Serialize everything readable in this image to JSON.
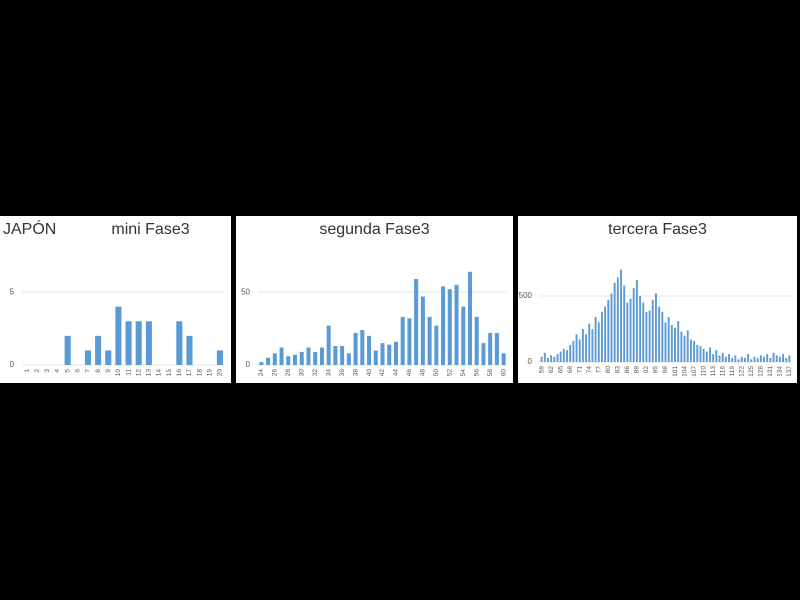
{
  "chart_data": [
    {
      "type": "bar",
      "label": "JAPÓN",
      "title": "mini Fase3",
      "color": "#5b9bd5",
      "grid": true,
      "categories": [
        "1",
        "2",
        "3",
        "4",
        "5",
        "6",
        "7",
        "8",
        "9",
        "10",
        "11",
        "12",
        "13",
        "14",
        "15",
        "16",
        "17",
        "18",
        "19",
        "20"
      ],
      "values": [
        0,
        0,
        0,
        0,
        2,
        0,
        1,
        2,
        1,
        4,
        3,
        3,
        3,
        0,
        0,
        3,
        2,
        0,
        0,
        1
      ],
      "ylim": [
        0,
        7
      ],
      "yticks": [
        0,
        5
      ]
    },
    {
      "type": "bar",
      "title": "segunda Fase3",
      "color": "#5b9bd5",
      "grid": true,
      "categories": [
        "24",
        null,
        "26",
        null,
        "28",
        null,
        "30",
        null,
        "32",
        null,
        "34",
        null,
        "36",
        null,
        "38",
        null,
        "40",
        null,
        "42",
        null,
        "44",
        null,
        "46",
        null,
        "48",
        null,
        "50",
        null,
        "52",
        null,
        "54",
        null,
        "56",
        null,
        "58",
        null,
        "60"
      ],
      "values": [
        2,
        5,
        8,
        12,
        6,
        7,
        9,
        12,
        9,
        12,
        27,
        13,
        13,
        8,
        22,
        24,
        20,
        10,
        15,
        14,
        16,
        33,
        32,
        59,
        47,
        33,
        27,
        54,
        52,
        55,
        40,
        64,
        33,
        15,
        22,
        22,
        8
      ],
      "ylim": [
        0,
        70
      ],
      "yticks": [
        0,
        50
      ]
    },
    {
      "type": "bar",
      "title": "tercera Fase3",
      "color": "#5b9bd5",
      "grid": true,
      "categories": [
        "59",
        null,
        null,
        "62",
        null,
        null,
        "65",
        null,
        null,
        "68",
        null,
        null,
        "71",
        null,
        null,
        "74",
        null,
        null,
        "77",
        null,
        null,
        "80",
        null,
        null,
        "83",
        null,
        null,
        "86",
        null,
        null,
        "89",
        null,
        null,
        "92",
        null,
        null,
        "95",
        null,
        null,
        "98",
        null,
        null,
        "101",
        null,
        null,
        "104",
        null,
        null,
        "107",
        null,
        null,
        "110",
        null,
        null,
        "113",
        null,
        null,
        "116",
        null,
        null,
        "119",
        null,
        null,
        "122",
        null,
        null,
        "125",
        null,
        null,
        "128",
        null,
        null,
        "131",
        null,
        null,
        "134",
        null,
        null,
        "137"
      ],
      "values": [
        40,
        70,
        30,
        50,
        40,
        60,
        80,
        100,
        90,
        130,
        160,
        210,
        170,
        250,
        210,
        290,
        250,
        340,
        300,
        380,
        420,
        470,
        520,
        600,
        640,
        700,
        580,
        450,
        480,
        560,
        620,
        500,
        450,
        380,
        390,
        470,
        520,
        420,
        380,
        300,
        340,
        280,
        260,
        310,
        230,
        200,
        240,
        170,
        160,
        130,
        120,
        100,
        80,
        110,
        60,
        90,
        50,
        70,
        40,
        60,
        30,
        50,
        20,
        40,
        30,
        60,
        20,
        40,
        30,
        50,
        40,
        60,
        30,
        70,
        50,
        40,
        60,
        30,
        50
      ],
      "ylim": [
        0,
        750
      ],
      "yticks": [
        0,
        500
      ]
    }
  ]
}
